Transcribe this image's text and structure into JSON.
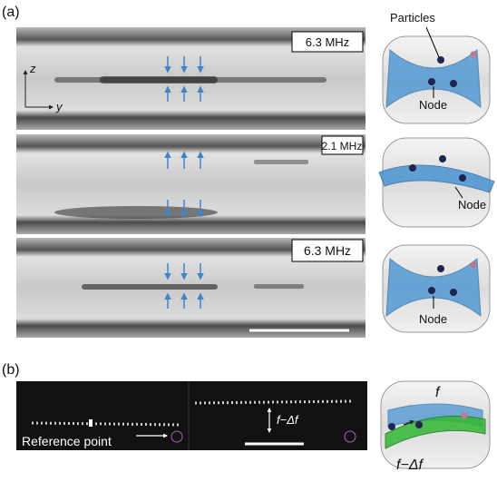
{
  "panel_a": {
    "label": "(a)",
    "axes": {
      "z": "z",
      "y": "y"
    },
    "frames": [
      {
        "frequency": "6.3 MHz"
      },
      {
        "frequency": "2.1 MHz"
      },
      {
        "frequency": "6.3 MHz"
      }
    ],
    "schematics": [
      {
        "particles": "Particles",
        "node": "Node"
      },
      {
        "node": "Node"
      },
      {
        "node": "Node"
      }
    ]
  },
  "panel_b": {
    "label": "(b)",
    "shift_label": "f−Δf",
    "reference_label": "Reference point",
    "schematic": {
      "upper": "f",
      "lower": "f−Δf"
    }
  }
}
